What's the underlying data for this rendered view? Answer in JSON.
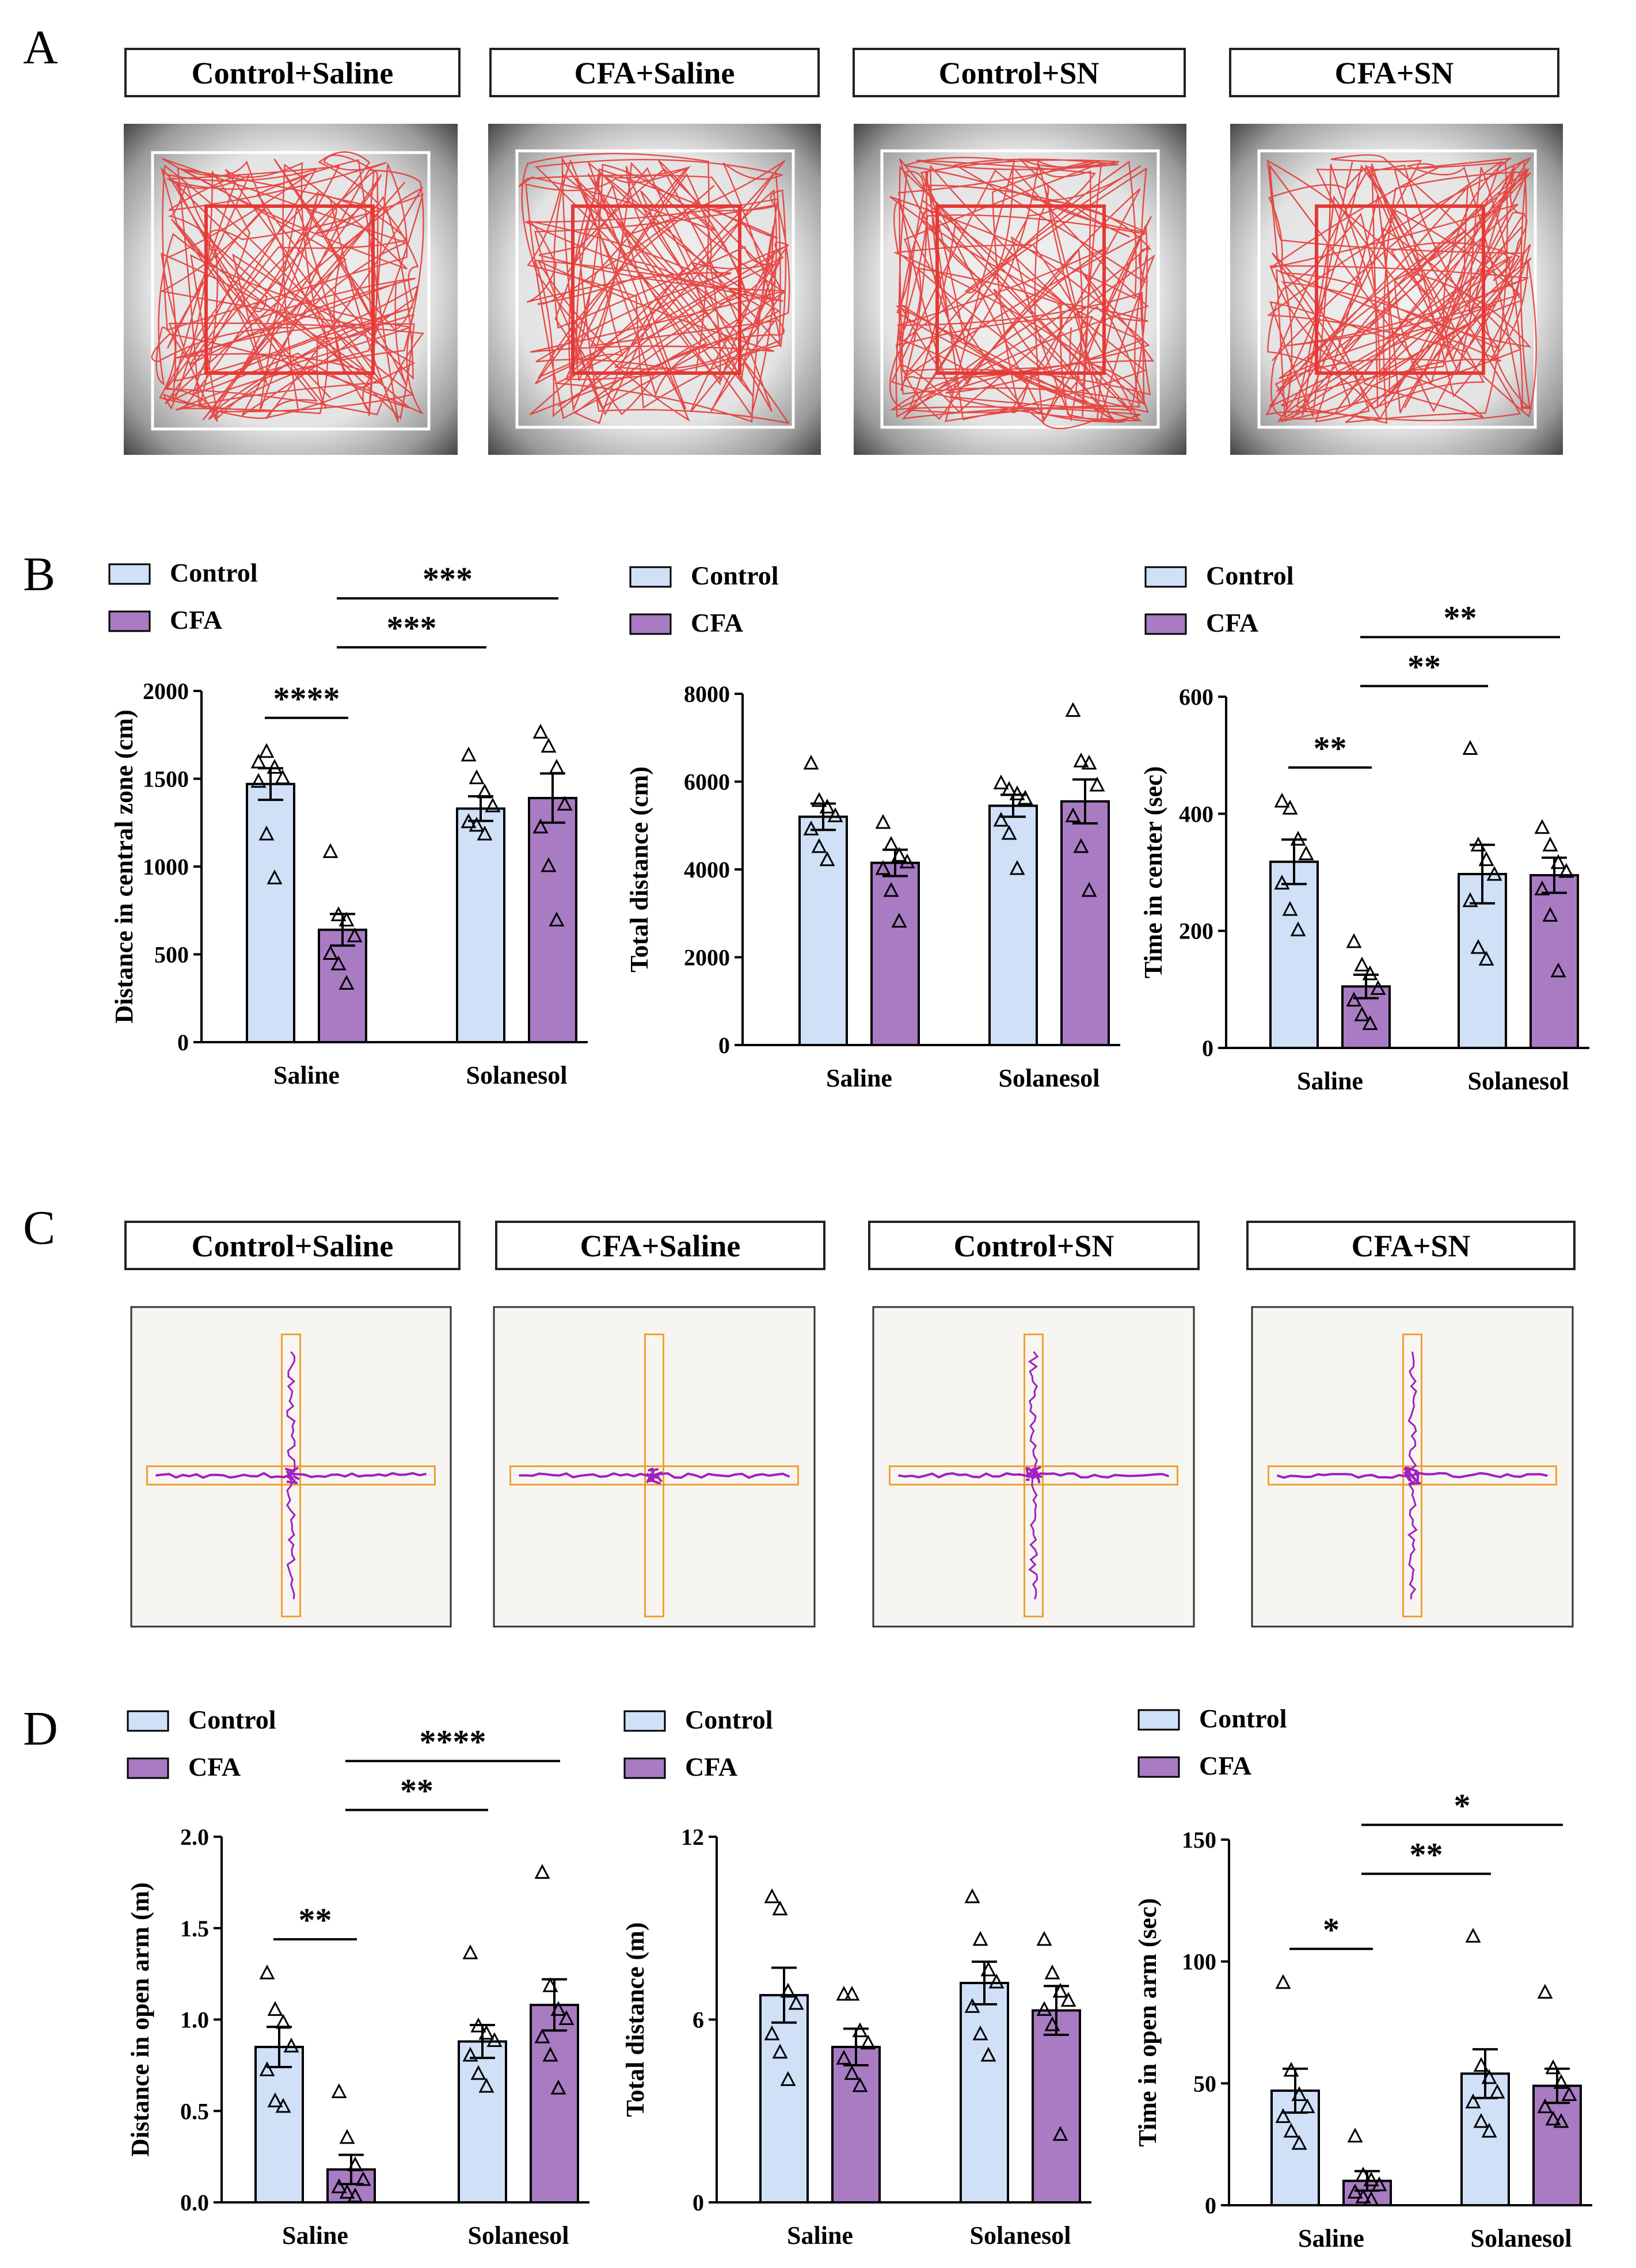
{
  "colors": {
    "control_fill": "#cfe0f7",
    "cfa_fill": "#a97bc3",
    "track_red": "#e53935",
    "track_purple": "#a020c0",
    "maze_orange": "#f0a030",
    "axis": "#000000"
  },
  "panels": {
    "A": {
      "letter": "A",
      "labels": [
        "Control+Saline",
        "CFA+Saline",
        "Control+SN",
        "CFA+SN"
      ]
    },
    "B": {
      "letter": "B"
    },
    "C": {
      "letter": "C",
      "labels": [
        "Control+Saline",
        "CFA+Saline",
        "Control+SN",
        "CFA+SN"
      ]
    },
    "D": {
      "letter": "D"
    }
  },
  "legend": {
    "control": "Control",
    "cfa": "CFA"
  },
  "chart_data": [
    {
      "id": "B1",
      "type": "bar",
      "categories": [
        "Saline",
        "Solanesol"
      ],
      "ylabel": "Distance in central zone (cm)",
      "ylim": [
        0,
        2000
      ],
      "yticks": [
        0,
        500,
        1000,
        1500,
        2000
      ],
      "series": [
        {
          "name": "Control",
          "values": [
            1470,
            1330
          ],
          "sem": [
            90,
            70
          ],
          "points": [
            [
              1590,
              1650,
              1560,
              1500,
              1480,
              1180,
              930
            ],
            [
              1630,
              1500,
              1420,
              1340,
              1250,
              1230,
              1180
            ]
          ]
        },
        {
          "name": "CFA",
          "values": [
            640,
            1390
          ],
          "sem": [
            90,
            140
          ],
          "points": [
            [
              1080,
              720,
              690,
              600,
              500,
              440,
              330
            ],
            [
              1760,
              1680,
              1560,
              1350,
              1220,
              1000,
              690
            ]
          ]
        }
      ],
      "significance": [
        {
          "label": "****",
          "level": 0
        },
        {
          "label": "***",
          "level": 1
        },
        {
          "label": "***",
          "level": 2
        }
      ]
    },
    {
      "id": "B2",
      "type": "bar",
      "categories": [
        "Saline",
        "Solanesol"
      ],
      "ylabel": "Total distance (cm)",
      "ylim": [
        0,
        8000
      ],
      "yticks": [
        0,
        2000,
        4000,
        6000,
        8000
      ],
      "series": [
        {
          "name": "Control",
          "values": [
            5200,
            5450
          ],
          "sem": [
            300,
            250
          ],
          "points": [
            [
              6400,
              5550,
              5400,
              5200,
              4900,
              4500,
              4200
            ],
            [
              5950,
              5800,
              5700,
              5600,
              5100,
              4800,
              4000
            ]
          ]
        },
        {
          "name": "CFA",
          "values": [
            4150,
            5550
          ],
          "sem": [
            300,
            500
          ],
          "points": [
            [
              5050,
              4550,
              4300,
              4150,
              4000,
              3500,
              2800
            ],
            [
              7600,
              6450,
              6400,
              5900,
              5200,
              4500,
              3500
            ]
          ]
        }
      ],
      "significance": []
    },
    {
      "id": "B3",
      "type": "bar",
      "categories": [
        "Saline",
        "Solanesol"
      ],
      "ylabel": "Time in center (sec)",
      "ylim": [
        0,
        600
      ],
      "yticks": [
        0,
        200,
        400,
        600
      ],
      "series": [
        {
          "name": "Control",
          "values": [
            318,
            297
          ],
          "sem": [
            38,
            50
          ],
          "points": [
            [
              420,
              408,
              355,
              330,
              280,
              235,
              200
            ],
            [
              510,
              345,
              320,
              295,
              250,
              170,
              150
            ]
          ]
        },
        {
          "name": "CFA",
          "values": [
            105,
            295
          ],
          "sem": [
            20,
            30
          ],
          "points": [
            [
              180,
              140,
              125,
              100,
              80,
              55,
              40
            ],
            [
              375,
              345,
              315,
              300,
              270,
              225,
              130
            ]
          ]
        }
      ],
      "significance": [
        {
          "label": "**",
          "level": 0
        },
        {
          "label": "**",
          "level": 1
        },
        {
          "label": "**",
          "level": 2
        }
      ]
    },
    {
      "id": "D1",
      "type": "bar",
      "categories": [
        "Saline",
        "Solanesol"
      ],
      "ylabel": "Distance in open arm (m)",
      "ylim": [
        0,
        2.0
      ],
      "yticks": [
        0.0,
        0.5,
        1.0,
        1.5,
        2.0
      ],
      "tick_format": 1,
      "series": [
        {
          "name": "Control",
          "values": [
            0.85,
            0.88
          ],
          "sem": [
            0.11,
            0.09
          ],
          "points": [
            [
              1.25,
              1.05,
              0.98,
              0.85,
              0.72,
              0.55,
              0.52
            ],
            [
              1.36,
              0.96,
              0.92,
              0.88,
              0.8,
              0.7,
              0.63
            ]
          ]
        },
        {
          "name": "CFA",
          "values": [
            0.18,
            1.08
          ],
          "sem": [
            0.08,
            0.14
          ],
          "points": [
            [
              0.6,
              0.35,
              0.2,
              0.12,
              0.08,
              0.05,
              0.03
            ],
            [
              1.8,
              1.18,
              1.05,
              1.0,
              0.9,
              0.8,
              0.62
            ]
          ]
        }
      ],
      "significance": [
        {
          "label": "**",
          "level": 0
        },
        {
          "label": "**",
          "level": 1
        },
        {
          "label": "****",
          "level": 2
        }
      ]
    },
    {
      "id": "D2",
      "type": "bar",
      "categories": [
        "Saline",
        "Solanesol"
      ],
      "ylabel": "Total distance (m)",
      "ylim": [
        0,
        12
      ],
      "yticks": [
        0,
        6,
        12
      ],
      "series": [
        {
          "name": "Control",
          "values": [
            6.8,
            7.2
          ],
          "sem": [
            0.9,
            0.7
          ],
          "points": [
            [
              10.0,
              9.6,
              6.9,
              6.5,
              5.5,
              4.9,
              4.0
            ],
            [
              10.0,
              8.6,
              7.6,
              7.2,
              6.4,
              5.5,
              4.8
            ]
          ]
        },
        {
          "name": "CFA",
          "values": [
            5.1,
            6.3
          ],
          "sem": [
            0.6,
            0.8
          ],
          "points": [
            [
              6.8,
              6.8,
              5.6,
              5.2,
              4.7,
              4.2,
              3.8
            ],
            [
              8.6,
              7.5,
              6.9,
              6.6,
              6.3,
              5.8,
              2.2
            ]
          ]
        }
      ],
      "significance": []
    },
    {
      "id": "D3",
      "type": "bar",
      "categories": [
        "Saline",
        "Solanesol"
      ],
      "ylabel": "Time in open arm (sec)",
      "ylim": [
        0,
        150
      ],
      "yticks": [
        0,
        50,
        100,
        150
      ],
      "series": [
        {
          "name": "Control",
          "values": [
            47,
            54
          ],
          "sem": [
            9,
            10
          ],
          "points": [
            [
              91,
              55,
              45,
              40,
              36,
              30,
              25
            ],
            [
              110,
              57,
              52,
              46,
              42,
              34,
              30
            ]
          ]
        },
        {
          "name": "CFA",
          "values": [
            10,
            49
          ],
          "sem": [
            4,
            7
          ],
          "points": [
            [
              28,
              12,
              10,
              8,
              5,
              3,
              2
            ],
            [
              87,
              56,
              50,
              45,
              40,
              35,
              34
            ]
          ]
        }
      ],
      "significance": [
        {
          "label": "*",
          "level": 0
        },
        {
          "label": "**",
          "level": 1
        },
        {
          "label": "*",
          "level": 2
        }
      ]
    }
  ]
}
